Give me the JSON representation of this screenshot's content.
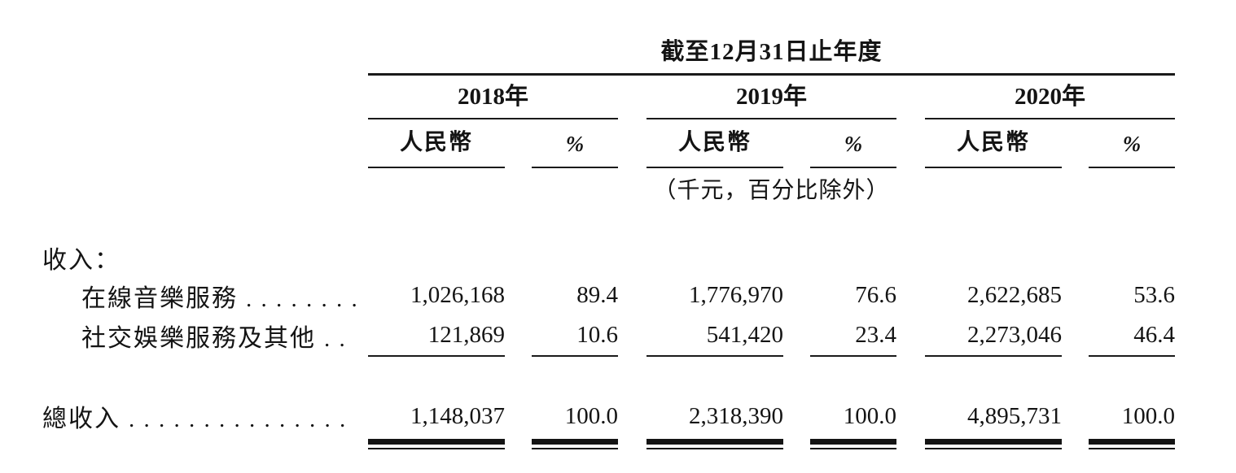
{
  "table": {
    "title": "截至12月31日止年度",
    "years": [
      {
        "label": "2018年",
        "currency_header": "人民幣",
        "percent_header": "%"
      },
      {
        "label": "2019年",
        "currency_header": "人民幣",
        "percent_header": "%"
      },
      {
        "label": "2020年",
        "currency_header": "人民幣",
        "percent_header": "%"
      }
    ],
    "unit_note": "（千元，百分比除外）",
    "section_header": "收入：",
    "rows": [
      {
        "label": "在線音樂服務",
        "leader_dots": ". . . . . . . .",
        "values": [
          "1,026,168",
          "89.4",
          "1,776,970",
          "76.6",
          "2,622,685",
          "53.6"
        ]
      },
      {
        "label": "社交娛樂服務及其他",
        "leader_dots": ". .",
        "values": [
          "121,869",
          "10.6",
          "541,420",
          "23.4",
          "2,273,046",
          "46.4"
        ]
      }
    ],
    "total": {
      "label": "總收入",
      "leader_dots": ". . . . . . . . . . . . . . .",
      "values": [
        "1,148,037",
        "100.0",
        "2,318,390",
        "100.0",
        "4,895,731",
        "100.0"
      ]
    }
  }
}
